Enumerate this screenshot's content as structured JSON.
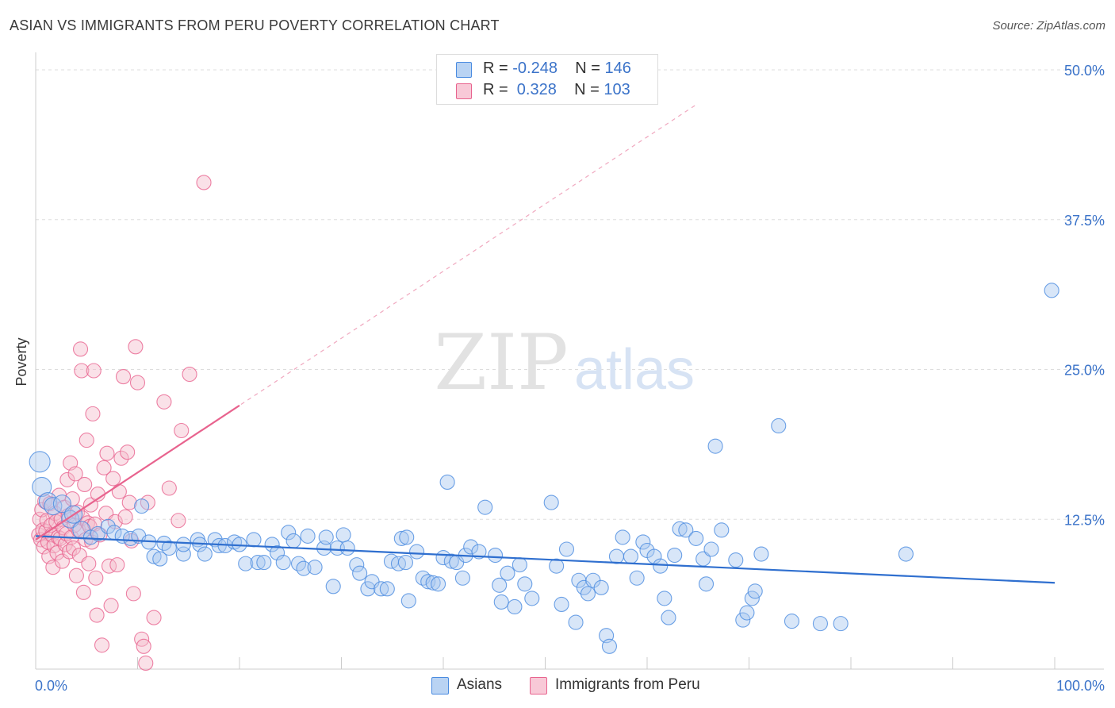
{
  "title": "ASIAN VS IMMIGRANTS FROM PERU POVERTY CORRELATION CHART",
  "source": "Source: ZipAtlas.com",
  "watermark": {
    "zip": "ZIP",
    "atlas": "atlas"
  },
  "colors": {
    "asians": "#4a8be0",
    "asians_fill": "#a9c8f0",
    "peru": "#e8638e",
    "peru_fill": "#f5bccd",
    "trend_asians": "#2f6fcf",
    "trend_peru": "#e8638e",
    "axis_label": "#3b73c9",
    "grid": "#dddddd"
  },
  "legend": {
    "asians": {
      "r_label": "R =",
      "r_value": "-0.248",
      "n_label": "N =",
      "n_value": "146"
    },
    "peru": {
      "r_label": "R =",
      "r_value": " 0.328",
      "n_label": "N =",
      "n_value": "103"
    }
  },
  "chart_data": {
    "type": "scatter",
    "title": "ASIAN VS IMMIGRANTS FROM PERU POVERTY CORRELATION CHART",
    "xlabel": "",
    "ylabel": "Poverty",
    "xlim": [
      0,
      100
    ],
    "ylim": [
      0,
      50
    ],
    "x_tick_labels": [
      "0.0%",
      "100.0%"
    ],
    "y_ticks": [
      12.5,
      25.0,
      37.5,
      50.0
    ],
    "y_tick_labels": [
      "12.5%",
      "25.0%",
      "37.5%",
      "50.0%"
    ],
    "legend_position": "bottom-center",
    "series": [
      {
        "name": "Asians",
        "R": -0.248,
        "N": 146,
        "trend": {
          "x": [
            0,
            100
          ],
          "y": [
            11.1,
            7.2
          ]
        },
        "points": [
          [
            0.4,
            17.3
          ],
          [
            0.6,
            15.2
          ],
          [
            1.2,
            14.0
          ],
          [
            1.7,
            13.6
          ],
          [
            2.6,
            13.8
          ],
          [
            3.4,
            12.5
          ],
          [
            3.7,
            12.9
          ],
          [
            4.5,
            11.6
          ],
          [
            5.4,
            11.0
          ],
          [
            6.1,
            11.3
          ],
          [
            7.1,
            11.9
          ],
          [
            7.7,
            11.4
          ],
          [
            8.5,
            11.1
          ],
          [
            9.3,
            10.9
          ],
          [
            10.1,
            11.1
          ],
          [
            10.4,
            13.6
          ],
          [
            11.1,
            10.6
          ],
          [
            11.6,
            9.4
          ],
          [
            12.2,
            9.2
          ],
          [
            12.6,
            10.5
          ],
          [
            13.1,
            10.1
          ],
          [
            14.5,
            9.6
          ],
          [
            14.5,
            10.4
          ],
          [
            15.9,
            10.8
          ],
          [
            16.1,
            10.4
          ],
          [
            16.6,
            9.6
          ],
          [
            17.6,
            10.8
          ],
          [
            18.0,
            10.3
          ],
          [
            18.6,
            10.3
          ],
          [
            19.5,
            10.6
          ],
          [
            20.0,
            10.4
          ],
          [
            20.6,
            8.8
          ],
          [
            21.4,
            10.8
          ],
          [
            21.8,
            8.9
          ],
          [
            22.4,
            8.9
          ],
          [
            23.2,
            10.4
          ],
          [
            23.7,
            9.7
          ],
          [
            24.3,
            8.9
          ],
          [
            24.8,
            11.4
          ],
          [
            25.3,
            10.7
          ],
          [
            25.8,
            8.8
          ],
          [
            26.3,
            8.4
          ],
          [
            26.7,
            11.1
          ],
          [
            27.4,
            8.5
          ],
          [
            28.3,
            10.1
          ],
          [
            28.5,
            11.0
          ],
          [
            29.2,
            6.9
          ],
          [
            29.6,
            10.1
          ],
          [
            30.2,
            11.2
          ],
          [
            30.6,
            10.1
          ],
          [
            31.5,
            8.7
          ],
          [
            31.8,
            8.0
          ],
          [
            32.6,
            6.7
          ],
          [
            33.0,
            7.3
          ],
          [
            33.9,
            6.7
          ],
          [
            34.5,
            6.7
          ],
          [
            34.9,
            9.0
          ],
          [
            35.6,
            8.8
          ],
          [
            35.9,
            10.9
          ],
          [
            36.3,
            8.9
          ],
          [
            36.4,
            11.0
          ],
          [
            36.6,
            5.7
          ],
          [
            37.4,
            9.8
          ],
          [
            38.0,
            7.6
          ],
          [
            38.5,
            7.3
          ],
          [
            39.0,
            7.2
          ],
          [
            39.5,
            7.1
          ],
          [
            40.0,
            9.3
          ],
          [
            40.4,
            15.6
          ],
          [
            40.8,
            9.0
          ],
          [
            41.3,
            8.9
          ],
          [
            41.9,
            7.6
          ],
          [
            42.2,
            9.5
          ],
          [
            42.7,
            10.2
          ],
          [
            43.5,
            9.8
          ],
          [
            44.1,
            13.5
          ],
          [
            45.1,
            9.5
          ],
          [
            45.5,
            7.0
          ],
          [
            45.7,
            5.6
          ],
          [
            46.3,
            8.0
          ],
          [
            47.0,
            5.2
          ],
          [
            47.5,
            8.7
          ],
          [
            48.0,
            7.1
          ],
          [
            48.7,
            5.9
          ],
          [
            50.6,
            13.9
          ],
          [
            51.1,
            8.6
          ],
          [
            51.6,
            5.4
          ],
          [
            52.1,
            10.0
          ],
          [
            53.0,
            3.9
          ],
          [
            53.3,
            7.4
          ],
          [
            53.8,
            6.8
          ],
          [
            54.2,
            6.3
          ],
          [
            54.7,
            7.4
          ],
          [
            55.5,
            6.8
          ],
          [
            56.0,
            2.8
          ],
          [
            56.3,
            1.9
          ],
          [
            57.0,
            9.4
          ],
          [
            57.6,
            11.0
          ],
          [
            58.4,
            9.4
          ],
          [
            59.0,
            7.6
          ],
          [
            59.6,
            10.6
          ],
          [
            60.0,
            9.9
          ],
          [
            60.7,
            9.4
          ],
          [
            61.3,
            8.6
          ],
          [
            61.7,
            5.9
          ],
          [
            62.1,
            4.3
          ],
          [
            62.7,
            9.5
          ],
          [
            63.2,
            11.7
          ],
          [
            63.8,
            11.6
          ],
          [
            64.8,
            10.9
          ],
          [
            65.5,
            9.2
          ],
          [
            65.8,
            7.1
          ],
          [
            66.3,
            10.0
          ],
          [
            66.7,
            18.6
          ],
          [
            67.3,
            11.6
          ],
          [
            68.7,
            9.1
          ],
          [
            69.4,
            4.1
          ],
          [
            69.8,
            4.7
          ],
          [
            70.3,
            5.9
          ],
          [
            70.6,
            6.5
          ],
          [
            71.2,
            9.6
          ],
          [
            72.9,
            20.3
          ],
          [
            74.2,
            4.0
          ],
          [
            77.0,
            3.8
          ],
          [
            79.0,
            3.8
          ],
          [
            85.4,
            9.6
          ],
          [
            99.7,
            31.6
          ]
        ]
      },
      {
        "name": "Immigrants from Peru",
        "R": 0.328,
        "N": 103,
        "trend": {
          "x": [
            0,
            20
          ],
          "y": [
            10.8,
            22.0
          ]
        },
        "trend_extension": {
          "x": [
            0,
            65
          ],
          "y": [
            10.8,
            47.2
          ]
        },
        "points": [
          [
            0.3,
            11.2
          ],
          [
            0.4,
            12.5
          ],
          [
            0.5,
            10.8
          ],
          [
            0.6,
            13.3
          ],
          [
            0.7,
            11.6
          ],
          [
            0.8,
            10.2
          ],
          [
            0.9,
            14.0
          ],
          [
            1.0,
            11.5
          ],
          [
            1.1,
            12.4
          ],
          [
            1.2,
            10.6
          ],
          [
            1.3,
            9.4
          ],
          [
            1.4,
            13.8
          ],
          [
            1.5,
            12.0
          ],
          [
            1.6,
            11.2
          ],
          [
            1.7,
            8.5
          ],
          [
            1.8,
            10.3
          ],
          [
            1.9,
            13.0
          ],
          [
            2.0,
            12.3
          ],
          [
            2.1,
            9.7
          ],
          [
            2.2,
            11.0
          ],
          [
            2.3,
            14.5
          ],
          [
            2.4,
            10.9
          ],
          [
            2.5,
            12.5
          ],
          [
            2.6,
            9.0
          ],
          [
            2.7,
            11.8
          ],
          [
            2.8,
            13.5
          ],
          [
            2.9,
            10.4
          ],
          [
            3.0,
            11.3
          ],
          [
            3.1,
            15.8
          ],
          [
            3.2,
            12.8
          ],
          [
            3.3,
            9.8
          ],
          [
            3.4,
            17.2
          ],
          [
            3.5,
            11.0
          ],
          [
            3.6,
            14.2
          ],
          [
            3.7,
            10.1
          ],
          [
            3.8,
            12.0
          ],
          [
            3.9,
            16.3
          ],
          [
            4.0,
            7.8
          ],
          [
            4.1,
            13.1
          ],
          [
            4.2,
            11.6
          ],
          [
            4.3,
            9.5
          ],
          [
            4.4,
            26.7
          ],
          [
            4.5,
            24.9
          ],
          [
            4.6,
            12.6
          ],
          [
            4.7,
            6.4
          ],
          [
            4.8,
            15.4
          ],
          [
            4.9,
            10.8
          ],
          [
            5.0,
            19.1
          ],
          [
            5.1,
            12.2
          ],
          [
            5.2,
            8.8
          ],
          [
            5.3,
            11.9
          ],
          [
            5.4,
            13.7
          ],
          [
            5.5,
            10.6
          ],
          [
            5.6,
            21.3
          ],
          [
            5.7,
            24.9
          ],
          [
            5.8,
            12.1
          ],
          [
            5.9,
            7.6
          ],
          [
            6.0,
            4.5
          ],
          [
            6.1,
            14.6
          ],
          [
            6.3,
            11.2
          ],
          [
            6.5,
            2.0
          ],
          [
            6.7,
            16.8
          ],
          [
            6.9,
            13.0
          ],
          [
            7.0,
            18.0
          ],
          [
            7.2,
            8.6
          ],
          [
            7.4,
            5.3
          ],
          [
            7.6,
            15.9
          ],
          [
            7.8,
            12.3
          ],
          [
            8.0,
            8.7
          ],
          [
            8.2,
            14.8
          ],
          [
            8.4,
            17.6
          ],
          [
            8.6,
            24.4
          ],
          [
            8.8,
            12.7
          ],
          [
            9.0,
            18.1
          ],
          [
            9.2,
            13.9
          ],
          [
            9.4,
            10.7
          ],
          [
            9.6,
            6.3
          ],
          [
            9.8,
            26.9
          ],
          [
            10.0,
            23.9
          ],
          [
            10.4,
            2.5
          ],
          [
            10.6,
            1.9
          ],
          [
            10.8,
            0.5
          ],
          [
            11.0,
            13.9
          ],
          [
            11.6,
            4.3
          ],
          [
            12.6,
            22.3
          ],
          [
            13.1,
            15.1
          ],
          [
            14.0,
            12.4
          ],
          [
            14.3,
            19.9
          ],
          [
            15.1,
            24.6
          ],
          [
            16.5,
            40.6
          ]
        ]
      }
    ]
  }
}
